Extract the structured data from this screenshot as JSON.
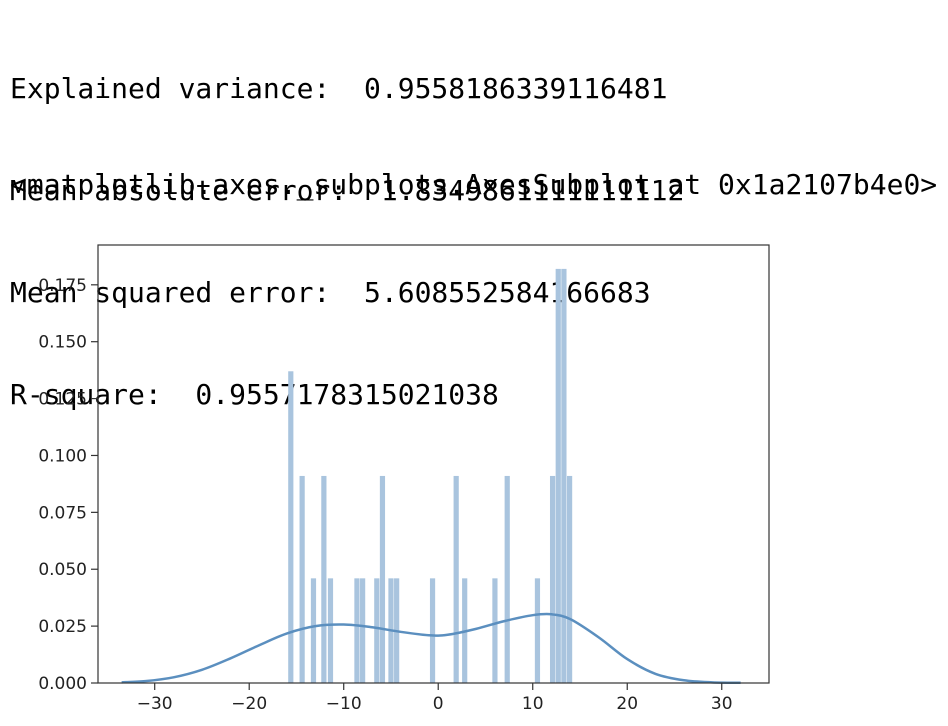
{
  "output": {
    "lines": [
      "Explained variance:  0.9558186339116481",
      "Mean absolute error:  1.8349861111111112",
      "Mean squared error:  5.608552584166683",
      "R-square:  0.9557178315021038"
    ],
    "repr": "<matplotlib.axes._subplots.AxesSubplot at 0x1a2107b4e0>"
  },
  "chart_data": {
    "type": "bar",
    "title": "",
    "xlabel": "",
    "ylabel": "",
    "xlim": [
      -36,
      35
    ],
    "ylim": [
      0,
      0.1925
    ],
    "xticks": [
      -30,
      -20,
      -10,
      0,
      10,
      20,
      30
    ],
    "yticks": [
      0.0,
      0.025,
      0.05,
      0.075,
      0.1,
      0.125,
      0.15,
      0.175
    ],
    "ytick_labels": [
      "0.000",
      "0.025",
      "0.050",
      "0.075",
      "0.100",
      "0.125",
      "0.150",
      "0.175"
    ],
    "bin_width": 0.55,
    "bar_color": "#a9c4de",
    "line_color": "#5b8fbf",
    "histogram": [
      {
        "x": -15.6,
        "density": 0.137
      },
      {
        "x": -14.4,
        "density": 0.091
      },
      {
        "x": -13.2,
        "density": 0.046
      },
      {
        "x": -12.1,
        "density": 0.091
      },
      {
        "x": -11.4,
        "density": 0.046
      },
      {
        "x": -8.6,
        "density": 0.046
      },
      {
        "x": -8.0,
        "density": 0.046
      },
      {
        "x": -6.5,
        "density": 0.046
      },
      {
        "x": -5.9,
        "density": 0.091
      },
      {
        "x": -5.0,
        "density": 0.046
      },
      {
        "x": -4.4,
        "density": 0.046
      },
      {
        "x": -0.6,
        "density": 0.046
      },
      {
        "x": 1.9,
        "density": 0.091
      },
      {
        "x": 2.8,
        "density": 0.046
      },
      {
        "x": 6.0,
        "density": 0.046
      },
      {
        "x": 7.3,
        "density": 0.091
      },
      {
        "x": 10.5,
        "density": 0.046
      },
      {
        "x": 12.1,
        "density": 0.091
      },
      {
        "x": 12.7,
        "density": 0.182
      },
      {
        "x": 13.3,
        "density": 0.182
      },
      {
        "x": 13.9,
        "density": 0.091
      }
    ],
    "kde": {
      "x": [
        -33.5,
        -31,
        -28,
        -25,
        -22,
        -19,
        -16,
        -13,
        -10,
        -7,
        -4,
        -1,
        1,
        4,
        7,
        10,
        12,
        14,
        17,
        20,
        23,
        26,
        29,
        32
      ],
      "y": [
        0.0003,
        0.0008,
        0.0025,
        0.0058,
        0.0108,
        0.0165,
        0.0218,
        0.025,
        0.0257,
        0.0245,
        0.0225,
        0.021,
        0.0212,
        0.0238,
        0.0272,
        0.0298,
        0.0302,
        0.028,
        0.02,
        0.0105,
        0.004,
        0.0012,
        0.0003,
        0.0001
      ]
    }
  }
}
